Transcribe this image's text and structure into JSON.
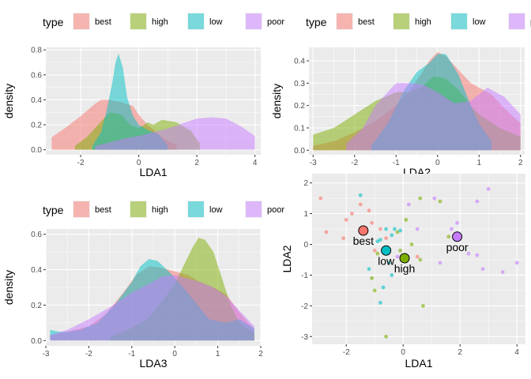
{
  "colors": {
    "best": "#F8766D",
    "high": "#7CAE00",
    "low": "#00BFC4",
    "poor": "#C77CFF",
    "panel": "#EBEBEB",
    "grid": "#FFFFFF"
  },
  "legend": {
    "title": "type",
    "labels": [
      "best",
      "high",
      "low",
      "poor"
    ]
  },
  "chart_data": [
    {
      "type": "area",
      "xlabel": "LDA1",
      "ylabel": "density",
      "xlim": [
        -3.2,
        4.2
      ],
      "ylim": [
        -0.04,
        0.82
      ],
      "xticks": [
        -2,
        0,
        2,
        4
      ],
      "yticks": [
        0.0,
        0.2,
        0.4,
        0.6,
        0.8
      ],
      "series": [
        {
          "name": "best",
          "x": [
            -3,
            -2.5,
            -2,
            -1.5,
            -1.3,
            -1,
            -0.6,
            -0.2,
            0,
            0.3,
            0.6,
            0.8,
            1,
            1.3
          ],
          "values": [
            0.1,
            0.18,
            0.27,
            0.37,
            0.4,
            0.4,
            0.38,
            0.35,
            0.28,
            0.2,
            0.14,
            0.1,
            0.07,
            0.04
          ]
        },
        {
          "name": "high",
          "x": [
            -2.2,
            -1.8,
            -1.4,
            -1,
            -0.6,
            -0.3,
            0,
            0.3,
            0.5,
            0.8,
            1.3,
            1.8,
            2.1
          ],
          "values": [
            0.03,
            0.1,
            0.2,
            0.3,
            0.28,
            0.2,
            0.17,
            0.22,
            0.2,
            0.24,
            0.22,
            0.15,
            0.05
          ]
        },
        {
          "name": "low",
          "x": [
            -1.6,
            -1.3,
            -1.1,
            -0.9,
            -0.8,
            -0.7,
            -0.55,
            -0.4,
            -0.2,
            0,
            0.3,
            0.5,
            0.7,
            1
          ],
          "values": [
            0.03,
            0.14,
            0.32,
            0.55,
            0.7,
            0.77,
            0.66,
            0.42,
            0.27,
            0.2,
            0.16,
            0.14,
            0.12,
            0.03
          ]
        },
        {
          "name": "poor",
          "x": [
            -1.5,
            -1,
            -0.5,
            0,
            0.5,
            1,
            1.5,
            2,
            2.5,
            3,
            3.5,
            4
          ],
          "values": [
            0.03,
            0.06,
            0.09,
            0.11,
            0.14,
            0.17,
            0.21,
            0.25,
            0.26,
            0.25,
            0.19,
            0.11
          ]
        }
      ]
    },
    {
      "type": "area",
      "xlabel": "LDA2",
      "ylabel": "density",
      "xlim": [
        -3.1,
        2.1
      ],
      "ylim": [
        -0.02,
        0.46
      ],
      "xticks": [
        -3,
        -2,
        -1,
        0,
        1,
        2
      ],
      "yticks": [
        0.0,
        0.1,
        0.2,
        0.3,
        0.4
      ],
      "series": [
        {
          "name": "best",
          "x": [
            -3,
            -2.5,
            -2,
            -1.5,
            -1,
            -0.7,
            -0.4,
            -0.2,
            0,
            0.2,
            0.5,
            0.8,
            1,
            1.3,
            1.6,
            2
          ],
          "values": [
            0.02,
            0.04,
            0.08,
            0.13,
            0.2,
            0.26,
            0.34,
            0.4,
            0.44,
            0.42,
            0.36,
            0.3,
            0.28,
            0.25,
            0.19,
            0.12
          ]
        },
        {
          "name": "high",
          "x": [
            -3,
            -2.5,
            -2,
            -1.5,
            -1,
            -0.7,
            -0.4,
            -0.1,
            0.2,
            0.5,
            0.8,
            1,
            1.5,
            2
          ],
          "values": [
            0.07,
            0.1,
            0.16,
            0.22,
            0.26,
            0.26,
            0.28,
            0.33,
            0.32,
            0.27,
            0.2,
            0.16,
            0.1,
            0.06
          ]
        },
        {
          "name": "low",
          "x": [
            -1.6,
            -1.2,
            -0.8,
            -0.5,
            -0.2,
            0,
            0.2,
            0.5,
            0.8,
            1,
            1.3
          ],
          "values": [
            0.02,
            0.12,
            0.27,
            0.35,
            0.39,
            0.43,
            0.43,
            0.34,
            0.2,
            0.12,
            0.04
          ]
        },
        {
          "name": "poor",
          "x": [
            -2.2,
            -1.8,
            -1.5,
            -1,
            -0.6,
            -0.3,
            0,
            0.4,
            0.8,
            1.2,
            1.6,
            2
          ],
          "values": [
            0.03,
            0.1,
            0.2,
            0.3,
            0.3,
            0.29,
            0.26,
            0.21,
            0.22,
            0.28,
            0.24,
            0.16
          ]
        }
      ]
    },
    {
      "type": "area",
      "xlabel": "LDA3",
      "ylabel": "density",
      "xlim": [
        -3.0,
        2.0
      ],
      "ylim": [
        -0.03,
        0.63
      ],
      "xticks": [
        -3,
        -2,
        -1,
        0,
        1,
        2
      ],
      "yticks": [
        0.0,
        0.2,
        0.4,
        0.6
      ],
      "series": [
        {
          "name": "best",
          "x": [
            -2.9,
            -2.5,
            -2,
            -1.6,
            -1.2,
            -0.9,
            -0.6,
            -0.3,
            0,
            0.3,
            0.6,
            0.9,
            1.2,
            1.5,
            1.85
          ],
          "values": [
            0.03,
            0.05,
            0.08,
            0.15,
            0.27,
            0.37,
            0.42,
            0.41,
            0.39,
            0.37,
            0.33,
            0.3,
            0.26,
            0.16,
            0.06
          ]
        },
        {
          "name": "high",
          "x": [
            -1.5,
            -1,
            -0.6,
            -0.3,
            0,
            0.2,
            0.4,
            0.55,
            0.7,
            0.9,
            1.1,
            1.3,
            1.5,
            1.85
          ],
          "values": [
            0.02,
            0.07,
            0.13,
            0.22,
            0.32,
            0.42,
            0.52,
            0.58,
            0.57,
            0.5,
            0.35,
            0.2,
            0.1,
            0.04
          ]
        },
        {
          "name": "low",
          "x": [
            -2.9,
            -2.7,
            -2.5,
            -2.2,
            -1.8,
            -1.4,
            -1,
            -0.8,
            -0.6,
            -0.4,
            -0.1,
            0.2,
            0.5,
            0.8,
            1.2,
            1.5,
            1.85
          ],
          "values": [
            0.06,
            0.05,
            0.05,
            0.06,
            0.1,
            0.2,
            0.33,
            0.42,
            0.46,
            0.45,
            0.38,
            0.3,
            0.21,
            0.12,
            0.1,
            0.12,
            0.07
          ]
        },
        {
          "name": "poor",
          "x": [
            -2.9,
            -2.5,
            -2,
            -1.5,
            -1,
            -0.6,
            -0.3,
            0,
            0.3,
            0.6,
            0.9,
            1.2,
            1.5,
            1.85
          ],
          "values": [
            0.03,
            0.06,
            0.12,
            0.19,
            0.27,
            0.32,
            0.36,
            0.37,
            0.35,
            0.33,
            0.3,
            0.25,
            0.17,
            0.08
          ]
        }
      ]
    },
    {
      "type": "scatter",
      "xlabel": "LDA1",
      "ylabel": "LDA2",
      "xlim": [
        -3.2,
        4.3
      ],
      "ylim": [
        -3.25,
        2.3
      ],
      "xticks": [
        -2,
        0,
        2,
        4
      ],
      "yticks": [
        -3,
        -2,
        -1,
        0,
        1,
        2
      ],
      "points": {
        "best": [
          [
            -2.9,
            1.5
          ],
          [
            -2.7,
            0.4
          ],
          [
            -2.1,
            0.2
          ],
          [
            -2.0,
            0.8
          ],
          [
            -1.8,
            1.0
          ],
          [
            -1.5,
            1.3
          ],
          [
            -1.2,
            1.1
          ],
          [
            -1.0,
            -0.2
          ],
          [
            -0.6,
            0.2
          ],
          [
            -1.1,
            0.7
          ],
          [
            -0.8,
            0.5
          ],
          [
            0.5,
            -0.4
          ]
        ],
        "high": [
          [
            0.6,
            1.5
          ],
          [
            1.3,
            1.4
          ],
          [
            0.1,
            0.8
          ],
          [
            1.8,
            0.25
          ],
          [
            1.6,
            0.25
          ],
          [
            -0.2,
            0.4
          ],
          [
            -1.1,
            -1.1
          ],
          [
            -1.0,
            -1.5
          ],
          [
            -0.9,
            -0.3
          ],
          [
            -0.1,
            -0.2
          ],
          [
            0.3,
            0.0
          ],
          [
            0.6,
            -0.5
          ],
          [
            -0.6,
            -3.0
          ],
          [
            0.7,
            -2.0
          ]
        ],
        "low": [
          [
            -1.5,
            1.6
          ],
          [
            -0.9,
            0.1
          ],
          [
            -0.8,
            0.15
          ],
          [
            -0.6,
            0.5
          ],
          [
            -0.5,
            -0.6
          ],
          [
            -0.4,
            0.3
          ],
          [
            -0.3,
            0.5
          ],
          [
            -0.1,
            0.45
          ],
          [
            -1.2,
            -0.8
          ],
          [
            -0.7,
            -1.4
          ],
          [
            -0.8,
            -1.9
          ],
          [
            -0.4,
            -1.0
          ]
        ],
        "poor": [
          [
            0.2,
            1.3
          ],
          [
            1.1,
            1.5
          ],
          [
            1.9,
            0.7
          ],
          [
            2.6,
            1.4
          ],
          [
            3.0,
            1.8
          ],
          [
            2.3,
            -0.3
          ],
          [
            2.8,
            -0.8
          ],
          [
            3.5,
            -0.9
          ],
          [
            4.0,
            -0.6
          ],
          [
            1.3,
            -0.6
          ],
          [
            2.6,
            -0.35
          ],
          [
            0.5,
            0.5
          ],
          [
            1.7,
            0.5
          ],
          [
            -0.2,
            -0.4
          ]
        ]
      },
      "centroids": [
        {
          "name": "best",
          "x": -1.4,
          "y": 0.45,
          "label": "best"
        },
        {
          "name": "low",
          "x": -0.6,
          "y": -0.2,
          "label": "low"
        },
        {
          "name": "high",
          "x": 0.05,
          "y": -0.45,
          "label": "high"
        },
        {
          "name": "poor",
          "x": 1.9,
          "y": 0.25,
          "label": "poor"
        }
      ]
    }
  ]
}
